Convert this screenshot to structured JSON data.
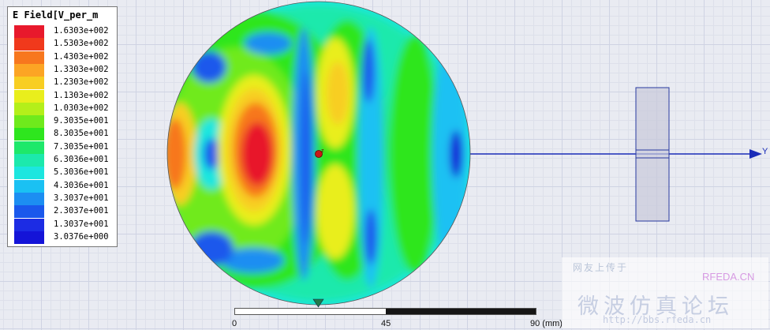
{
  "legend": {
    "title": "E Field[V_per_m",
    "entries": [
      {
        "label": "1.6303e+002",
        "color": "#e8192c"
      },
      {
        "label": "1.5303e+002",
        "color": "#f0391c"
      },
      {
        "label": "1.4303e+002",
        "color": "#f7771e"
      },
      {
        "label": "1.3303e+002",
        "color": "#fca524"
      },
      {
        "label": "1.2303e+002",
        "color": "#f8ce22"
      },
      {
        "label": "1.1303e+002",
        "color": "#e9ee1c"
      },
      {
        "label": "1.0303e+002",
        "color": "#b4ef1a"
      },
      {
        "label": "9.3035e+001",
        "color": "#6fea1c"
      },
      {
        "label": "8.3035e+001",
        "color": "#2ee61e"
      },
      {
        "label": "7.3035e+001",
        "color": "#1ee86a"
      },
      {
        "label": "6.3036e+001",
        "color": "#1ce9ac"
      },
      {
        "label": "5.3036e+001",
        "color": "#1ce6df"
      },
      {
        "label": "4.3036e+001",
        "color": "#1ac1f3"
      },
      {
        "label": "3.3037e+001",
        "color": "#1c8ef2"
      },
      {
        "label": "2.3037e+001",
        "color": "#1a58ec"
      },
      {
        "label": "1.3037e+001",
        "color": "#1c2ce4"
      },
      {
        "label": "3.0376e+000",
        "color": "#1414d8"
      }
    ]
  },
  "axis": {
    "label": "Y",
    "color": "#1a2cb8"
  },
  "scale_bar": {
    "ticks": [
      "0",
      "45",
      "90 (mm)"
    ]
  },
  "watermark": {
    "top": "网友上传于",
    "brand": "RFEDA.CN",
    "big": "微波仿真论坛",
    "url": "http://bbs.rfeda.cn"
  },
  "icons": {
    "origin_marker": "origin-marker-icon",
    "triad": "axis-triad-icon"
  }
}
